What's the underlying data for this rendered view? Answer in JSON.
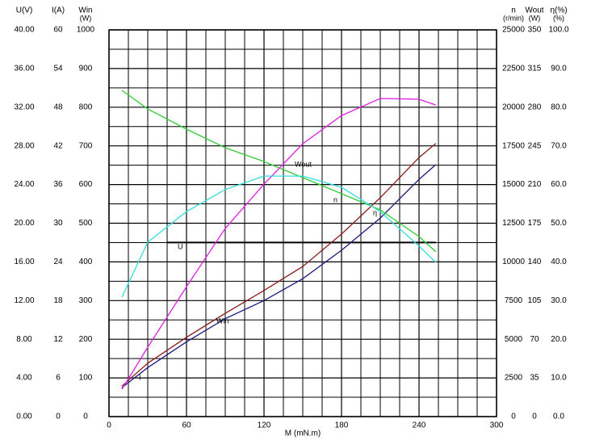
{
  "chart_data": {
    "type": "line",
    "x_label": "M  (mN.m)",
    "xlim": [
      0,
      300
    ],
    "xticks": [
      0,
      60,
      120,
      180,
      240,
      300
    ],
    "axes": [
      {
        "side": "left",
        "label": [
          "U(V)"
        ],
        "color": "#3a3a8c",
        "lim": [
          0,
          40
        ],
        "ticks": [
          {
            "value": 0,
            "label": "0.00"
          },
          {
            "value": 4,
            "label": "4.00"
          },
          {
            "value": 8,
            "label": "8.00"
          },
          {
            "value": 12,
            "label": "12.00"
          },
          {
            "value": 16,
            "label": "16.00"
          },
          {
            "value": 20,
            "label": "20.00"
          },
          {
            "value": 24,
            "label": "24.00"
          },
          {
            "value": 28,
            "label": "28.00"
          },
          {
            "value": 32,
            "label": "32.00"
          },
          {
            "value": 36,
            "label": "36.00"
          },
          {
            "value": 40,
            "label": "40.00"
          }
        ]
      },
      {
        "side": "left",
        "label": [
          "I(A)"
        ],
        "color": "#0000c0",
        "lim": [
          0,
          60
        ],
        "ticks": [
          0,
          6,
          12,
          18,
          24,
          30,
          36,
          42,
          48,
          54,
          60
        ]
      },
      {
        "side": "left",
        "label": [
          "Win",
          "(W)"
        ],
        "color": "#c00000",
        "lim": [
          0,
          1000
        ],
        "ticks": [
          0,
          100,
          200,
          300,
          400,
          500,
          600,
          700,
          800,
          900,
          1000
        ]
      },
      {
        "side": "right",
        "label": [
          "n",
          "(r/min)"
        ],
        "color": "#00b000",
        "lim": [
          0,
          25000
        ],
        "ticks": [
          0,
          2500,
          5000,
          7500,
          10000,
          12500,
          15000,
          17500,
          20000,
          22500,
          25000
        ]
      },
      {
        "side": "right",
        "label": [
          "Wout",
          "(W)"
        ],
        "color": "#d000d0",
        "lim": [
          0,
          350
        ],
        "ticks": [
          0,
          35,
          70,
          105,
          140,
          175,
          210,
          245,
          280,
          315,
          350
        ]
      },
      {
        "side": "right",
        "label": [
          "η(%)",
          "(%)"
        ],
        "color": "#00c0c0",
        "lim": [
          0,
          100
        ],
        "ticks": [
          {
            "value": 0,
            "label": "0.0"
          },
          {
            "value": 10,
            "label": "10.0"
          },
          {
            "value": 20,
            "label": "20.0"
          },
          {
            "value": 30,
            "label": "30.0"
          },
          {
            "value": 40,
            "label": "40.0"
          },
          {
            "value": 50,
            "label": "50.0"
          },
          {
            "value": 60,
            "label": "60.0"
          },
          {
            "value": 70,
            "label": "70.0"
          },
          {
            "value": 80,
            "label": "80.0"
          },
          {
            "value": 90,
            "label": "90.0"
          },
          {
            "value": 100,
            "label": "100.0"
          }
        ]
      }
    ],
    "series": [
      {
        "name": "U",
        "axis": 0,
        "color": "#000000",
        "x": [
          45,
          253
        ],
        "values": [
          18.0,
          18.0
        ]
      },
      {
        "name": "I",
        "axis": 1,
        "color": "#1a1a80",
        "x": [
          10,
          30,
          60,
          90,
          120,
          150,
          180,
          210,
          240,
          253
        ],
        "values": [
          4.5,
          7.6,
          11.6,
          15.2,
          18.0,
          21.4,
          25.8,
          30.8,
          36.8,
          39.1
        ]
      },
      {
        "name": "Win",
        "axis": 2,
        "color": "#8b1a1a",
        "x": [
          10,
          30,
          60,
          90,
          120,
          150,
          180,
          210,
          240,
          253
        ],
        "values": [
          79,
          138,
          205,
          267,
          326,
          388,
          472,
          566,
          670,
          706
        ]
      },
      {
        "name": "n",
        "axis": 3,
        "color": "#33cc33",
        "x": [
          10,
          30,
          60,
          90,
          120,
          150,
          180,
          210,
          240,
          253
        ],
        "values": [
          21090,
          19890,
          18580,
          17380,
          16490,
          15450,
          14410,
          13360,
          11640,
          10650
        ]
      },
      {
        "name": "Wout",
        "axis": 4,
        "color": "#e020e0",
        "x": [
          10,
          30,
          60,
          90,
          120,
          150,
          180,
          210,
          240,
          253
        ],
        "values": [
          24.8,
          62.8,
          117.6,
          170.3,
          210.4,
          247.0,
          272.5,
          287.9,
          287.2,
          282.0
        ]
      },
      {
        "name": "η",
        "axis": 5,
        "color": "#33dddd",
        "x": [
          10,
          30,
          60,
          90,
          120,
          150,
          180,
          210,
          240,
          253
        ],
        "values": [
          30.9,
          45.1,
          53.0,
          58.7,
          62.2,
          62.2,
          59.3,
          53.0,
          44.1,
          39.9
        ]
      }
    ]
  }
}
